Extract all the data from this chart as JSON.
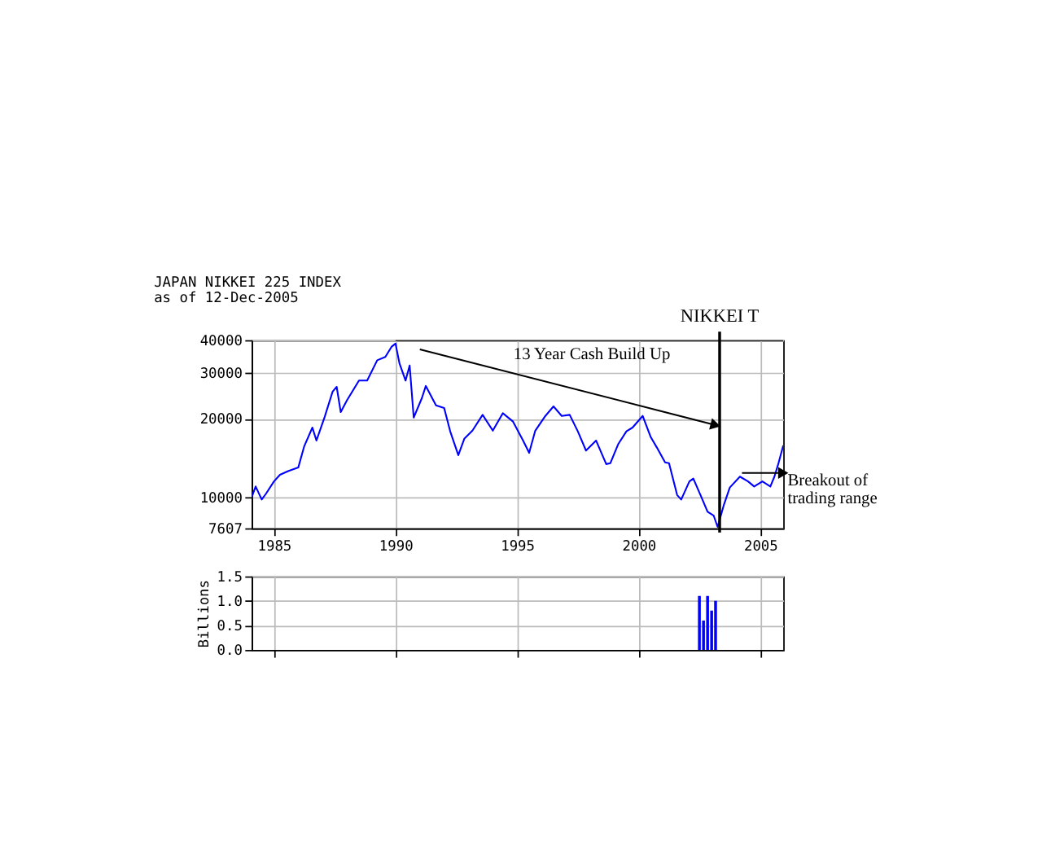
{
  "chart_data": [
    {
      "type": "line",
      "title": "JAPAN NIKKEI 225 INDEX",
      "subtitle": "as of 12-Dec-2005",
      "log": true,
      "grid": true,
      "xlim": [
        "1984-02",
        "2005-12-12"
      ],
      "xticks": [
        "1985",
        "1990",
        "1995",
        "2000",
        "2005"
      ],
      "ylim": [
        7607,
        40000
      ],
      "yticks": [
        7607,
        10000,
        20000,
        30000,
        40000
      ],
      "series": [
        {
          "color": "#0000ff",
          "x": [
            "1984-02",
            "1984-04",
            "1984-07",
            "1984-09",
            "1985-01",
            "1985-04",
            "1985-08",
            "1986-01",
            "1986-04",
            "1986-08",
            "1986-10",
            "1987-02",
            "1987-06",
            "1987-08",
            "1987-10",
            "1988-01",
            "1988-07",
            "1988-11",
            "1989-04",
            "1989-08",
            "1989-11",
            "1990-01",
            "1990-03",
            "1990-06",
            "1990-08",
            "1990-10",
            "1991-02",
            "1991-04",
            "1991-09",
            "1992-01",
            "1992-04",
            "1992-08",
            "1992-11",
            "1993-03",
            "1993-08",
            "1994-01",
            "1994-06",
            "1994-11",
            "1995-04",
            "1995-07",
            "1995-10",
            "1996-03",
            "1996-07",
            "1996-11",
            "1997-03",
            "1997-07",
            "1997-11",
            "1998-04",
            "1998-09",
            "1998-11",
            "1999-03",
            "1999-07",
            "1999-10",
            "2000-03",
            "2000-07",
            "2000-10",
            "2001-02",
            "2001-04",
            "2001-08",
            "2001-10",
            "2002-02",
            "2002-04",
            "2002-08",
            "2002-11",
            "2003-02",
            "2003-04",
            "2003-07",
            "2003-10",
            "2004-03",
            "2004-07",
            "2004-10",
            "2005-02",
            "2005-06",
            "2005-08",
            "2005-10",
            "2005-12-12"
          ],
          "values": [
            10000,
            11000,
            9800,
            10300,
            11500,
            12200,
            12600,
            13000,
            15700,
            18500,
            16500,
            20300,
            25400,
            26500,
            21200,
            23500,
            28000,
            28000,
            33500,
            34500,
            37700,
            38800,
            32600,
            28000,
            32000,
            20200,
            24000,
            26700,
            22500,
            22000,
            17900,
            14500,
            16800,
            18000,
            20700,
            18000,
            21000,
            19500,
            16500,
            14800,
            18000,
            20500,
            22300,
            20500,
            20700,
            17900,
            15100,
            16500,
            13400,
            13500,
            16000,
            17900,
            18500,
            20500,
            17000,
            15500,
            13600,
            13500,
            10200,
            9800,
            11500,
            11800,
            10000,
            8800,
            8500,
            7700,
            9300,
            10900,
            12000,
            11500,
            11000,
            11500,
            11000,
            12000,
            13500,
            15800
          ]
        },
        {
          "color": "#000000",
          "x": [
            "1991-01",
            "2003-03"
          ],
          "values": [
            36900,
            18900
          ],
          "marker": "triangle"
        },
        {
          "color": "#000000",
          "x": [
            "1990-01",
            "2005-12-12"
          ],
          "values": [
            40000,
            40000
          ]
        },
        {
          "color": "#000000",
          "x": [
            "2004-04",
            "2005-12-12"
          ],
          "values": [
            12400,
            12400
          ],
          "marker": "triangle"
        }
      ],
      "ref_lines": [
        {
          "axis": "x",
          "value": "2003-05",
          "label": "NIKKEI T",
          "color": "#000000"
        }
      ],
      "annotations": [
        "13 Year Cash Build Up",
        "Breakout of\ntrading range"
      ]
    },
    {
      "type": "bar",
      "ylabel": "Billions",
      "grid": true,
      "tick_labels": "y",
      "xlim": [
        "1984-02",
        "2005-12-12"
      ],
      "xticks": [
        "1985",
        "1990",
        "1995",
        "2000",
        "2005"
      ],
      "ylim": [
        0,
        1.5
      ],
      "yticks": [
        {
          "value": 0,
          "label": "0.0"
        },
        0.5,
        {
          "value": 1,
          "label": "1.0"
        },
        1.5
      ],
      "series": [
        {
          "color": "#0000ff",
          "x": [
            "2002-07",
            "2002-09",
            "2002-11",
            "2003-01",
            "2003-03"
          ],
          "values": [
            1.1,
            0.6,
            1.1,
            0.8,
            1.0
          ]
        }
      ]
    }
  ]
}
